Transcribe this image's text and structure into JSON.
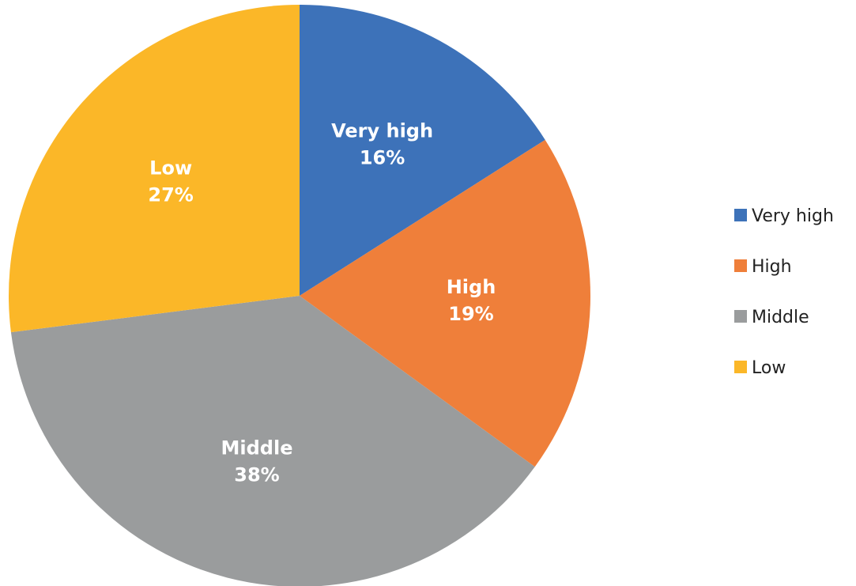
{
  "chart_data": {
    "type": "pie",
    "categories": [
      "Very high",
      "High",
      "Middle",
      "Low"
    ],
    "values": [
      16,
      19,
      38,
      27
    ],
    "value_labels": [
      "16%",
      "19%",
      "38%",
      "27%"
    ],
    "colors": [
      "#3d72b9",
      "#ef7f3a",
      "#9a9c9d",
      "#fbb728"
    ],
    "start_angle_deg": 0,
    "direction": "clockwise",
    "legend_position": "right",
    "title": ""
  }
}
